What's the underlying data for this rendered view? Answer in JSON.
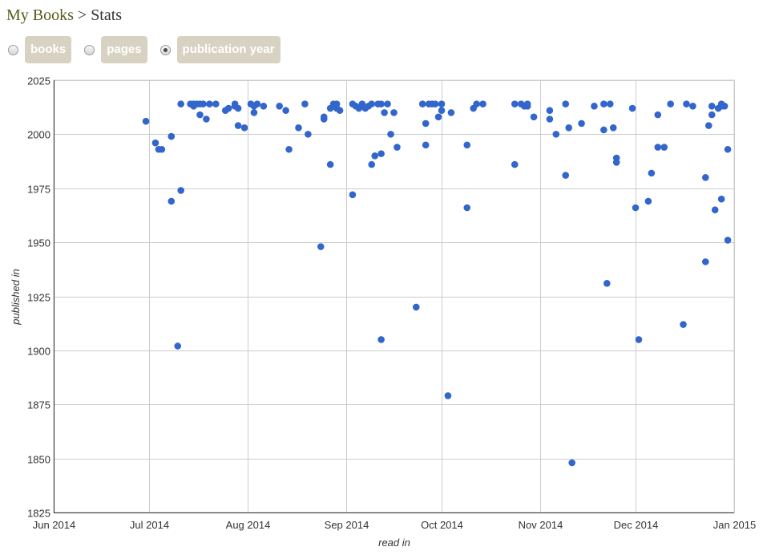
{
  "breadcrumb": {
    "root": "My Books",
    "separator": ">",
    "current": "Stats"
  },
  "options": [
    {
      "label": "books",
      "checked": false
    },
    {
      "label": "pages",
      "checked": false
    },
    {
      "label": "publication year",
      "checked": true
    }
  ],
  "colors": {
    "point": "#3366cc",
    "grid": "#cccccc",
    "axis": "#333333",
    "button_bg": "#d7d2c2",
    "breadcrumb_link": "#5a5a1e"
  },
  "chart_data": {
    "type": "scatter",
    "xlabel": "read in",
    "ylabel": "published in",
    "xlim": [
      "2014-06-01",
      "2015-01-01"
    ],
    "ylim": [
      1825,
      2025
    ],
    "xticks": [
      {
        "date": "2014-06-01",
        "label": "Jun 2014"
      },
      {
        "date": "2014-07-01",
        "label": "Jul 2014"
      },
      {
        "date": "2014-08-01",
        "label": "Aug 2014"
      },
      {
        "date": "2014-09-01",
        "label": "Sep 2014"
      },
      {
        "date": "2014-10-01",
        "label": "Oct 2014"
      },
      {
        "date": "2014-11-01",
        "label": "Nov 2014"
      },
      {
        "date": "2014-12-01",
        "label": "Dec 2014"
      },
      {
        "date": "2015-01-01",
        "label": "Jan 2015"
      }
    ],
    "yticks": [
      1825,
      1850,
      1875,
      1900,
      1925,
      1950,
      1975,
      2000,
      2025
    ],
    "grid": true,
    "points": [
      [
        "2014-06-30",
        2006
      ],
      [
        "2014-07-03",
        1996
      ],
      [
        "2014-07-04",
        1993
      ],
      [
        "2014-07-05",
        1993
      ],
      [
        "2014-07-08",
        1969
      ],
      [
        "2014-07-08",
        1999
      ],
      [
        "2014-07-10",
        1902
      ],
      [
        "2014-07-11",
        2014
      ],
      [
        "2014-07-11",
        1974
      ],
      [
        "2014-07-14",
        2014
      ],
      [
        "2014-07-15",
        2013
      ],
      [
        "2014-07-15",
        2014
      ],
      [
        "2014-07-16",
        2014
      ],
      [
        "2014-07-17",
        2014
      ],
      [
        "2014-07-17",
        2009
      ],
      [
        "2014-07-18",
        2014
      ],
      [
        "2014-07-19",
        2007
      ],
      [
        "2014-07-20",
        2014
      ],
      [
        "2014-07-22",
        2014
      ],
      [
        "2014-07-25",
        2011
      ],
      [
        "2014-07-26",
        2012
      ],
      [
        "2014-07-28",
        2014
      ],
      [
        "2014-07-28",
        2013
      ],
      [
        "2014-07-29",
        2004
      ],
      [
        "2014-07-29",
        2012
      ],
      [
        "2014-07-31",
        2003
      ],
      [
        "2014-08-02",
        2014
      ],
      [
        "2014-08-03",
        2010
      ],
      [
        "2014-08-03",
        2013
      ],
      [
        "2014-08-04",
        2014
      ],
      [
        "2014-08-06",
        2013
      ],
      [
        "2014-08-11",
        2013
      ],
      [
        "2014-08-13",
        2011
      ],
      [
        "2014-08-14",
        1993
      ],
      [
        "2014-08-17",
        2003
      ],
      [
        "2014-08-19",
        2014
      ],
      [
        "2014-08-20",
        2000
      ],
      [
        "2014-08-24",
        1948
      ],
      [
        "2014-08-25",
        2008
      ],
      [
        "2014-08-25",
        2007
      ],
      [
        "2014-08-27",
        1986
      ],
      [
        "2014-08-27",
        2012
      ],
      [
        "2014-08-28",
        2014
      ],
      [
        "2014-08-29",
        2014
      ],
      [
        "2014-08-29",
        2012
      ],
      [
        "2014-08-30",
        2011
      ],
      [
        "2014-09-03",
        2014
      ],
      [
        "2014-09-03",
        1972
      ],
      [
        "2014-09-04",
        2013
      ],
      [
        "2014-09-05",
        2012
      ],
      [
        "2014-09-06",
        2014
      ],
      [
        "2014-09-07",
        2012
      ],
      [
        "2014-09-08",
        2013
      ],
      [
        "2014-09-09",
        2014
      ],
      [
        "2014-09-09",
        1986
      ],
      [
        "2014-09-10",
        1990
      ],
      [
        "2014-09-11",
        2014
      ],
      [
        "2014-09-12",
        1991
      ],
      [
        "2014-09-12",
        1905
      ],
      [
        "2014-09-12",
        2014
      ],
      [
        "2014-09-13",
        2010
      ],
      [
        "2014-09-14",
        2014
      ],
      [
        "2014-09-15",
        2000
      ],
      [
        "2014-09-16",
        2010
      ],
      [
        "2014-09-17",
        1994
      ],
      [
        "2014-09-23",
        1920
      ],
      [
        "2014-09-25",
        2014
      ],
      [
        "2014-09-26",
        2005
      ],
      [
        "2014-09-26",
        1995
      ],
      [
        "2014-09-27",
        2014
      ],
      [
        "2014-09-28",
        2014
      ],
      [
        "2014-09-29",
        2014
      ],
      [
        "2014-09-30",
        2008
      ],
      [
        "2014-10-01",
        2014
      ],
      [
        "2014-10-01",
        2011
      ],
      [
        "2014-10-03",
        1879
      ],
      [
        "2014-10-04",
        2010
      ],
      [
        "2014-10-09",
        1995
      ],
      [
        "2014-10-09",
        1966
      ],
      [
        "2014-10-11",
        2012
      ],
      [
        "2014-10-12",
        2014
      ],
      [
        "2014-10-14",
        2014
      ],
      [
        "2014-10-24",
        1986
      ],
      [
        "2014-10-24",
        2014
      ],
      [
        "2014-10-26",
        2014
      ],
      [
        "2014-10-27",
        2013
      ],
      [
        "2014-10-28",
        2014
      ],
      [
        "2014-10-28",
        2013
      ],
      [
        "2014-10-30",
        2008
      ],
      [
        "2014-11-04",
        2007
      ],
      [
        "2014-11-04",
        2011
      ],
      [
        "2014-11-06",
        2000
      ],
      [
        "2014-11-09",
        1981
      ],
      [
        "2014-11-09",
        2014
      ],
      [
        "2014-11-10",
        2003
      ],
      [
        "2014-11-11",
        1848
      ],
      [
        "2014-11-14",
        2005
      ],
      [
        "2014-11-18",
        2013
      ],
      [
        "2014-11-21",
        2002
      ],
      [
        "2014-11-21",
        2014
      ],
      [
        "2014-11-22",
        1931
      ],
      [
        "2014-11-23",
        2014
      ],
      [
        "2014-11-24",
        2003
      ],
      [
        "2014-11-25",
        1989
      ],
      [
        "2014-11-25",
        1987
      ],
      [
        "2014-11-30",
        2012
      ],
      [
        "2014-12-01",
        1966
      ],
      [
        "2014-12-02",
        1905
      ],
      [
        "2014-12-05",
        1969
      ],
      [
        "2014-12-06",
        1982
      ],
      [
        "2014-12-08",
        1994
      ],
      [
        "2014-12-08",
        2009
      ],
      [
        "2014-12-10",
        1994
      ],
      [
        "2014-12-12",
        2014
      ],
      [
        "2014-12-16",
        1912
      ],
      [
        "2014-12-17",
        2014
      ],
      [
        "2014-12-19",
        2013
      ],
      [
        "2014-12-23",
        1941
      ],
      [
        "2014-12-23",
        1980
      ],
      [
        "2014-12-24",
        2004
      ],
      [
        "2014-12-25",
        2013
      ],
      [
        "2014-12-25",
        2009
      ],
      [
        "2014-12-26",
        1965
      ],
      [
        "2014-12-27",
        2012
      ],
      [
        "2014-12-28",
        2013
      ],
      [
        "2014-12-28",
        1970
      ],
      [
        "2014-12-28",
        2014
      ],
      [
        "2014-12-29",
        2013
      ],
      [
        "2014-12-30",
        1993
      ],
      [
        "2014-12-30",
        1951
      ]
    ]
  }
}
